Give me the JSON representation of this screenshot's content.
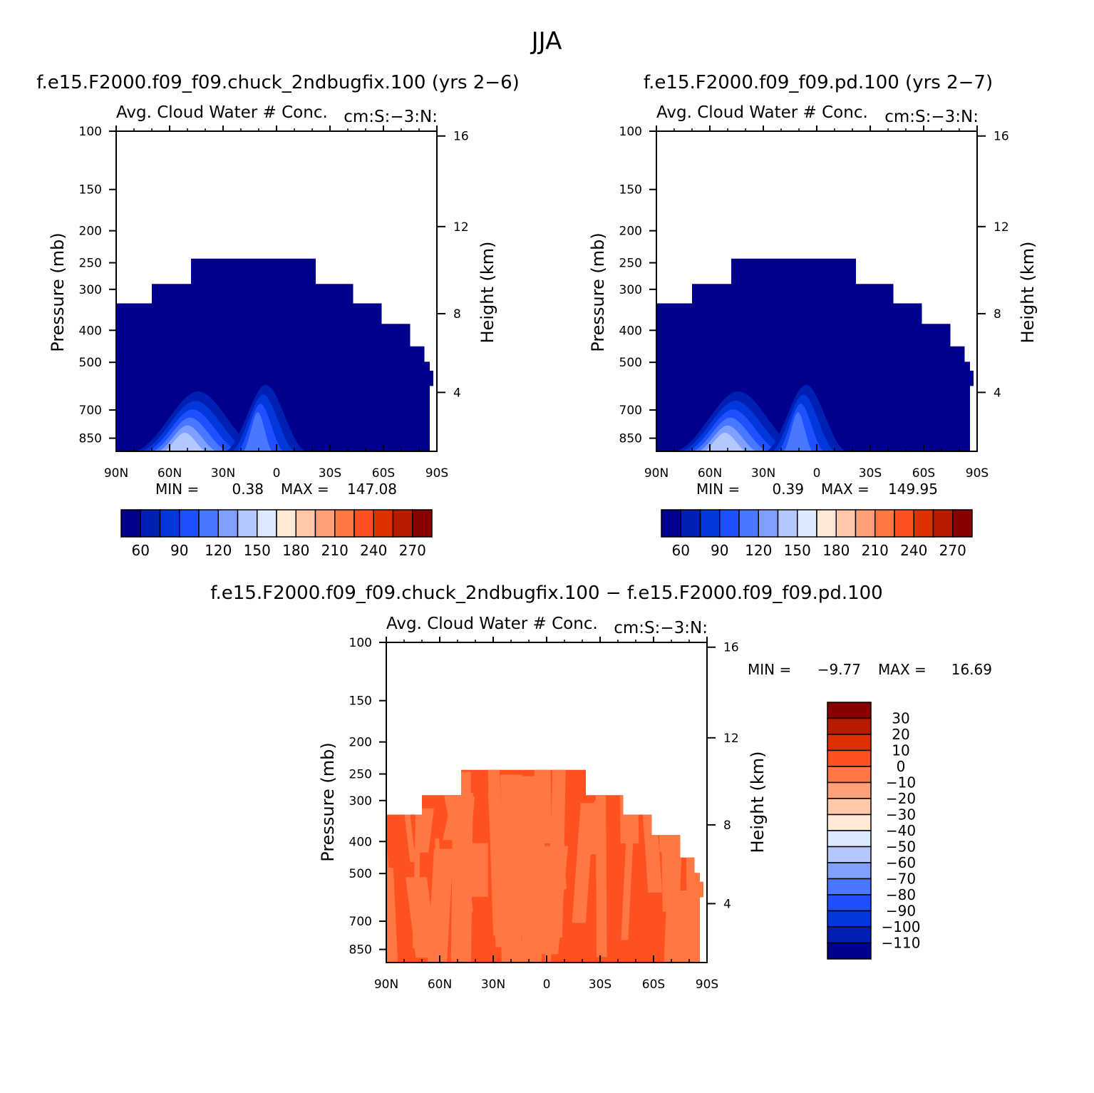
{
  "page": {
    "title": "JJA"
  },
  "colors": {
    "levels12": [
      "#00008c",
      "#0020b4",
      "#0038dc",
      "#1e50ff",
      "#4878ff",
      "#80a0ff",
      "#b4c8ff",
      "#dceaff",
      "#ffe8d6",
      "#ffc8a8",
      "#ffa078",
      "#ff7844",
      "#ff5020",
      "#e03000",
      "#b81c00",
      "#880000"
    ],
    "fill_main": "#00008c",
    "diff_dark": "#ff5020",
    "diff_light": "#ff7844"
  },
  "chart_data": [
    {
      "type": "contour",
      "panel_title": "f.e15.F2000.f09_f09.chuck_2ndbugfix.100 (yrs 2−6)",
      "subtitle_left": "Avg. Cloud Water # Conc.",
      "subtitle_right": "cm:S:−3:N:",
      "ylabel": "Pressure (mb)",
      "ylabel_right": "Height (km)",
      "x_ticks": [
        "90N",
        "60N",
        "30N",
        "0",
        "30S",
        "60S",
        "90S"
      ],
      "y_ticks": [
        "100",
        "150",
        "200",
        "250",
        "300",
        "400",
        "500",
        "700",
        "850"
      ],
      "y_right_ticks": [
        "16",
        "12",
        "8",
        "4"
      ],
      "stats": {
        "min_label": "MIN =",
        "min": "0.38",
        "max_label": "MAX =",
        "max": "147.08"
      },
      "colorbar": {
        "labels": [
          "60",
          "90",
          "120",
          "150",
          "180",
          "210",
          "240",
          "270"
        ]
      }
    },
    {
      "type": "contour",
      "panel_title": "f.e15.F2000.f09_f09.pd.100 (yrs 2−7)",
      "subtitle_left": "Avg. Cloud Water # Conc.",
      "subtitle_right": "cm:S:−3:N:",
      "ylabel": "Pressure (mb)",
      "ylabel_right": "Height (km)",
      "x_ticks": [
        "90N",
        "60N",
        "30N",
        "0",
        "30S",
        "60S",
        "90S"
      ],
      "y_ticks": [
        "100",
        "150",
        "200",
        "250",
        "300",
        "400",
        "500",
        "700",
        "850"
      ],
      "y_right_ticks": [
        "16",
        "12",
        "8",
        "4"
      ],
      "stats": {
        "min_label": "MIN =",
        "min": "0.39",
        "max_label": "MAX =",
        "max": "149.95"
      },
      "colorbar": {
        "labels": [
          "60",
          "90",
          "120",
          "150",
          "180",
          "210",
          "240",
          "270"
        ]
      }
    },
    {
      "type": "contour",
      "panel_title": "f.e15.F2000.f09_f09.chuck_2ndbugfix.100 − f.e15.F2000.f09_f09.pd.100",
      "subtitle_left": "Avg. Cloud Water # Conc.",
      "subtitle_right": "cm:S:−3:N:",
      "ylabel": "Pressure (mb)",
      "ylabel_right": "Height (km)",
      "x_ticks": [
        "90N",
        "60N",
        "30N",
        "0",
        "30S",
        "60S",
        "90S"
      ],
      "y_ticks": [
        "100",
        "150",
        "200",
        "250",
        "300",
        "400",
        "500",
        "700",
        "850"
      ],
      "y_right_ticks": [
        "16",
        "12",
        "8",
        "4"
      ],
      "stats": {
        "min_label": "MIN =",
        "min": "−9.77",
        "max_label": "MAX =",
        "max": "16.69"
      },
      "colorbar": {
        "labels": [
          "30",
          "20",
          "10",
          "0",
          "−10",
          "−20",
          "−30",
          "−40",
          "−50",
          "−60",
          "−70",
          "−80",
          "−90",
          "−100",
          "−110"
        ]
      }
    }
  ]
}
